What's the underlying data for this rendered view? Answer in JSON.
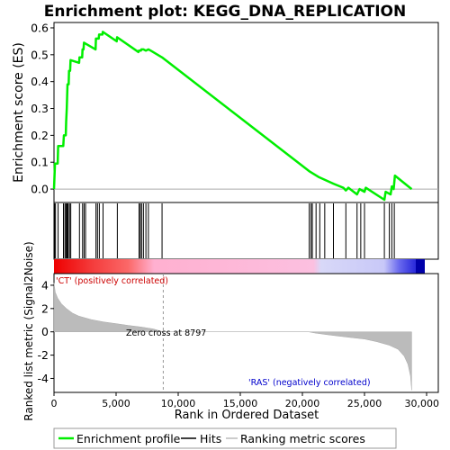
{
  "chart_data": {
    "type": "line",
    "title": "Enrichment plot: KEGG_DNA_REPLICATION",
    "es_panel": {
      "ylabel": "Enrichment score (ES)",
      "ylim": [
        -0.05,
        0.62
      ],
      "yticks": [
        0.0,
        0.1,
        0.2,
        0.3,
        0.4,
        0.5,
        0.6
      ],
      "ytick_labels": [
        "0.0",
        "0.1",
        "0.2",
        "0.3",
        "0.4",
        "0.5",
        "0.6"
      ],
      "line_color": "#00ee00",
      "points": [
        [
          0,
          0.0
        ],
        [
          80,
          0.095
        ],
        [
          300,
          0.095
        ],
        [
          330,
          0.16
        ],
        [
          750,
          0.16
        ],
        [
          800,
          0.2
        ],
        [
          950,
          0.2
        ],
        [
          980,
          0.25
        ],
        [
          1030,
          0.3
        ],
        [
          1060,
          0.345
        ],
        [
          1090,
          0.39
        ],
        [
          1180,
          0.39
        ],
        [
          1210,
          0.44
        ],
        [
          1300,
          0.44
        ],
        [
          1330,
          0.48
        ],
        [
          2020,
          0.47
        ],
        [
          2050,
          0.49
        ],
        [
          2270,
          0.49
        ],
        [
          2300,
          0.52
        ],
        [
          2380,
          0.52
        ],
        [
          2410,
          0.545
        ],
        [
          3350,
          0.52
        ],
        [
          3380,
          0.56
        ],
        [
          3600,
          0.56
        ],
        [
          3630,
          0.575
        ],
        [
          3900,
          0.575
        ],
        [
          3930,
          0.585
        ],
        [
          5050,
          0.55
        ],
        [
          5080,
          0.565
        ],
        [
          6800,
          0.51
        ],
        [
          6830,
          0.515
        ],
        [
          7000,
          0.515
        ],
        [
          7030,
          0.52
        ],
        [
          7200,
          0.52
        ],
        [
          7400,
          0.515
        ],
        [
          7600,
          0.52
        ],
        [
          7800,
          0.515
        ],
        [
          8700,
          0.49
        ],
        [
          20600,
          0.065
        ],
        [
          21300,
          0.045
        ],
        [
          22500,
          0.02
        ],
        [
          23300,
          0.005
        ],
        [
          23500,
          -0.005
        ],
        [
          23700,
          0.005
        ],
        [
          24400,
          -0.02
        ],
        [
          24600,
          0.0
        ],
        [
          25000,
          -0.01
        ],
        [
          25100,
          0.005
        ],
        [
          26600,
          -0.04
        ],
        [
          26700,
          -0.01
        ],
        [
          27100,
          -0.02
        ],
        [
          27200,
          0.01
        ],
        [
          27350,
          0.0
        ],
        [
          27450,
          0.05
        ],
        [
          28800,
          0.0
        ]
      ]
    },
    "hits": [
      40,
      120,
      330,
      760,
      880,
      960,
      1030,
      1080,
      1140,
      1250,
      1350,
      2050,
      2300,
      2420,
      2540,
      3380,
      3500,
      3650,
      3950,
      5100,
      6850,
      6950,
      7050,
      7200,
      7400,
      7600,
      8700,
      20550,
      20700,
      20800,
      21100,
      21400,
      21800,
      22500,
      23500,
      24400,
      24700,
      25000,
      26600,
      27000,
      27200,
      27400
    ],
    "metric_panel": {
      "ylabel": "Ranked list metric (Signal2Noise)",
      "ylim": [
        -5.2,
        5.0
      ],
      "yticks": [
        -4,
        -2,
        0,
        2,
        4
      ],
      "ytick_labels": [
        "-4",
        "-2",
        "0",
        "2",
        "4"
      ],
      "zero_cross_label": "Zero cross at 8797",
      "zero_cross": 8797,
      "positive_label": "'CT' (positively correlated)",
      "negative_label": "'RAS' (negatively correlated)",
      "positive_color": "#cc0000",
      "negative_color": "#0000cc",
      "curve": [
        [
          0,
          4.2
        ],
        [
          100,
          3.4
        ],
        [
          300,
          2.9
        ],
        [
          600,
          2.4
        ],
        [
          1000,
          2.0
        ],
        [
          1500,
          1.6
        ],
        [
          2000,
          1.35
        ],
        [
          3000,
          1.05
        ],
        [
          4000,
          0.85
        ],
        [
          5000,
          0.7
        ],
        [
          6000,
          0.55
        ],
        [
          7000,
          0.42
        ],
        [
          8000,
          0.25
        ],
        [
          8797,
          0.0
        ],
        [
          20500,
          0.0
        ],
        [
          21000,
          -0.1
        ],
        [
          22000,
          -0.25
        ],
        [
          23000,
          -0.38
        ],
        [
          24000,
          -0.5
        ],
        [
          25000,
          -0.62
        ],
        [
          26000,
          -0.85
        ],
        [
          27000,
          -1.15
        ],
        [
          27700,
          -1.5
        ],
        [
          28200,
          -2.1
        ],
        [
          28500,
          -2.8
        ],
        [
          28700,
          -3.8
        ],
        [
          28800,
          -5.0
        ]
      ]
    },
    "xaxis": {
      "xlabel": "Rank in Ordered Dataset",
      "xlim": [
        0,
        30000
      ],
      "xticks": [
        0,
        5000,
        10000,
        15000,
        20000,
        25000,
        30000
      ],
      "xtick_labels": [
        "0",
        "5,000",
        "10,000",
        "15,000",
        "20,000",
        "25,000",
        "30,000"
      ],
      "n": 28800
    },
    "legend": {
      "placement": "bottom",
      "entries": [
        {
          "label": "Enrichment profile",
          "color": "#00ee00"
        },
        {
          "label": "Hits",
          "color": "#000000"
        },
        {
          "label": "Ranking metric scores",
          "color": "#bbbbbb"
        }
      ]
    }
  }
}
